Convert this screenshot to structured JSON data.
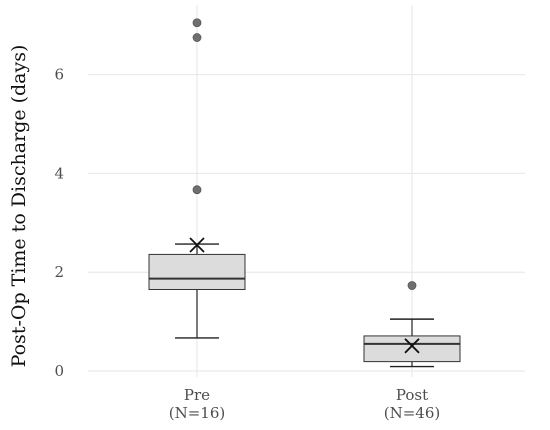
{
  "chart_data": {
    "type": "boxplot",
    "title": "",
    "xlabel": "",
    "ylabel": "Post-Op Time to Discharge (days)",
    "ylim": [
      0,
      7.1
    ],
    "yticks": [
      0,
      2,
      4,
      6
    ],
    "grid": true,
    "categories": [
      {
        "name": "Pre",
        "n_label": "(N=16)"
      },
      {
        "name": "Post",
        "n_label": "(N=46)"
      }
    ],
    "boxes": [
      {
        "category": "Pre",
        "whisker_low": 0.67,
        "q1": 1.65,
        "median": 1.87,
        "q3": 2.36,
        "whisker_high": 2.57,
        "mean": 2.55,
        "outliers": [
          3.67,
          6.75,
          7.05
        ]
      },
      {
        "category": "Post",
        "whisker_low": 0.09,
        "q1": 0.19,
        "median": 0.55,
        "q3": 0.71,
        "whisker_high": 1.05,
        "mean": 0.51,
        "outliers": [
          1.73
        ]
      }
    ],
    "colors": {
      "box_fill": "#dcdcdc",
      "box_stroke": "#333333",
      "median": "#333333",
      "whisker": "#222222",
      "mean_marker": "#111111",
      "outlier": "#6f6f6f",
      "grid": "#e6e6e6"
    }
  }
}
